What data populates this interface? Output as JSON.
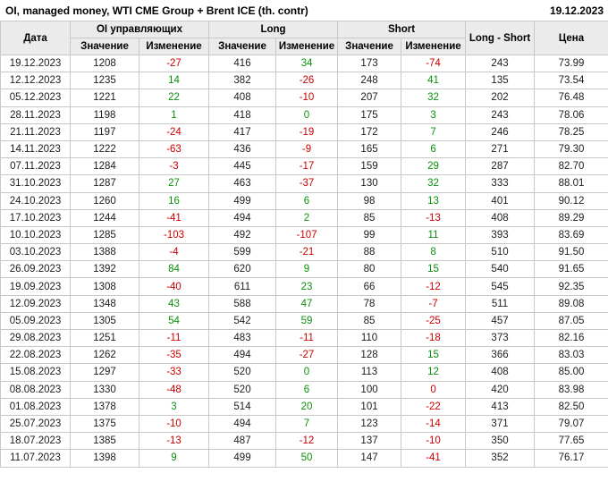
{
  "titlebar": {
    "title": "OI, managed money, WTI CME Group + Brent ICE (th. contr)",
    "date": "19.12.2023"
  },
  "colors": {
    "positive_change": "#0a910a",
    "negative_change": "#cc0000",
    "header_background": "#ebebeb",
    "grid_border": "#c8c8c8"
  },
  "table": {
    "headers": {
      "date": "Дата",
      "oi_group": "OI управляющих",
      "long_group": "Long",
      "short_group": "Short",
      "long_short": "Long - Short",
      "price": "Цена",
      "value": "Значение",
      "change": "Изменение"
    },
    "rows": [
      [
        "19.12.2023",
        "1208",
        "-27",
        "416",
        "34",
        "173",
        "-74",
        "243",
        "73.99"
      ],
      [
        "12.12.2023",
        "1235",
        "14",
        "382",
        "-26",
        "248",
        "41",
        "135",
        "73.54"
      ],
      [
        "05.12.2023",
        "1221",
        "22",
        "408",
        "-10",
        "207",
        "32",
        "202",
        "76.48"
      ],
      [
        "28.11.2023",
        "1198",
        "1",
        "418",
        "0",
        "175",
        "3",
        "243",
        "78.06"
      ],
      [
        "21.11.2023",
        "1197",
        "-24",
        "417",
        "-19",
        "172",
        "7",
        "246",
        "78.25"
      ],
      [
        "14.11.2023",
        "1222",
        "-63",
        "436",
        "-9",
        "165",
        "6",
        "271",
        "79.30"
      ],
      [
        "07.11.2023",
        "1284",
        "-3",
        "445",
        "-17",
        "159",
        "29",
        "287",
        "82.70"
      ],
      [
        "31.10.2023",
        "1287",
        "27",
        "463",
        "-37",
        "130",
        "32",
        "333",
        "88.01"
      ],
      [
        "24.10.2023",
        "1260",
        "16",
        "499",
        "6",
        "98",
        "13",
        "401",
        "90.12"
      ],
      [
        "17.10.2023",
        "1244",
        "-41",
        "494",
        "2",
        "85",
        "-13",
        "408",
        "89.29"
      ],
      [
        "10.10.2023",
        "1285",
        "-103",
        "492",
        "-107",
        "99",
        "11",
        "393",
        "83.69"
      ],
      [
        "03.10.2023",
        "1388",
        "-4",
        "599",
        "-21",
        "88",
        "8",
        "510",
        "91.50"
      ],
      [
        "26.09.2023",
        "1392",
        "84",
        "620",
        "9",
        "80",
        "15",
        "540",
        "91.65"
      ],
      [
        "19.09.2023",
        "1308",
        "-40",
        "611",
        "23",
        "66",
        "-12",
        "545",
        "92.35"
      ],
      [
        "12.09.2023",
        "1348",
        "43",
        "588",
        "47",
        "78",
        "-7",
        "511",
        "89.08"
      ],
      [
        "05.09.2023",
        "1305",
        "54",
        "542",
        "59",
        "85",
        "-25",
        "457",
        "87.05"
      ],
      [
        "29.08.2023",
        "1251",
        "-11",
        "483",
        "-11",
        "110",
        "-18",
        "373",
        "82.16"
      ],
      [
        "22.08.2023",
        "1262",
        "-35",
        "494",
        "-27",
        "128",
        "15",
        "366",
        "83.03"
      ],
      [
        "15.08.2023",
        "1297",
        "-33",
        "520",
        "0",
        "113",
        "12",
        "408",
        "85.00"
      ],
      [
        "08.08.2023",
        "1330",
        "-48",
        "520",
        "6",
        "100",
        "0",
        "420",
        "83.98"
      ],
      [
        "01.08.2023",
        "1378",
        "3",
        "514",
        "20",
        "101",
        "-22",
        "413",
        "82.50"
      ],
      [
        "25.07.2023",
        "1375",
        "-10",
        "494",
        "7",
        "123",
        "-14",
        "371",
        "79.07"
      ],
      [
        "18.07.2023",
        "1385",
        "-13",
        "487",
        "-12",
        "137",
        "-10",
        "350",
        "77.65"
      ],
      [
        "11.07.2023",
        "1398",
        "9",
        "499",
        "50",
        "147",
        "-41",
        "352",
        "76.17"
      ]
    ],
    "change_colors": [
      [
        "neg",
        "pos",
        "neg"
      ],
      [
        "pos",
        "neg",
        "pos"
      ],
      [
        "pos",
        "neg",
        "pos"
      ],
      [
        "pos",
        "pos",
        "pos"
      ],
      [
        "neg",
        "neg",
        "pos"
      ],
      [
        "neg",
        "neg",
        "pos"
      ],
      [
        "neg",
        "neg",
        "pos"
      ],
      [
        "pos",
        "neg",
        "pos"
      ],
      [
        "pos",
        "pos",
        "pos"
      ],
      [
        "neg",
        "pos",
        "neg"
      ],
      [
        "neg",
        "neg",
        "pos"
      ],
      [
        "neg",
        "neg",
        "pos"
      ],
      [
        "pos",
        "pos",
        "pos"
      ],
      [
        "neg",
        "pos",
        "neg"
      ],
      [
        "pos",
        "pos",
        "neg"
      ],
      [
        "pos",
        "pos",
        "neg"
      ],
      [
        "neg",
        "neg",
        "neg"
      ],
      [
        "neg",
        "neg",
        "pos"
      ],
      [
        "neg",
        "pos",
        "pos"
      ],
      [
        "neg",
        "pos",
        "neg"
      ],
      [
        "pos",
        "pos",
        "neg"
      ],
      [
        "neg",
        "pos",
        "neg"
      ],
      [
        "neg",
        "neg",
        "neg"
      ],
      [
        "pos",
        "pos",
        "neg"
      ]
    ]
  }
}
